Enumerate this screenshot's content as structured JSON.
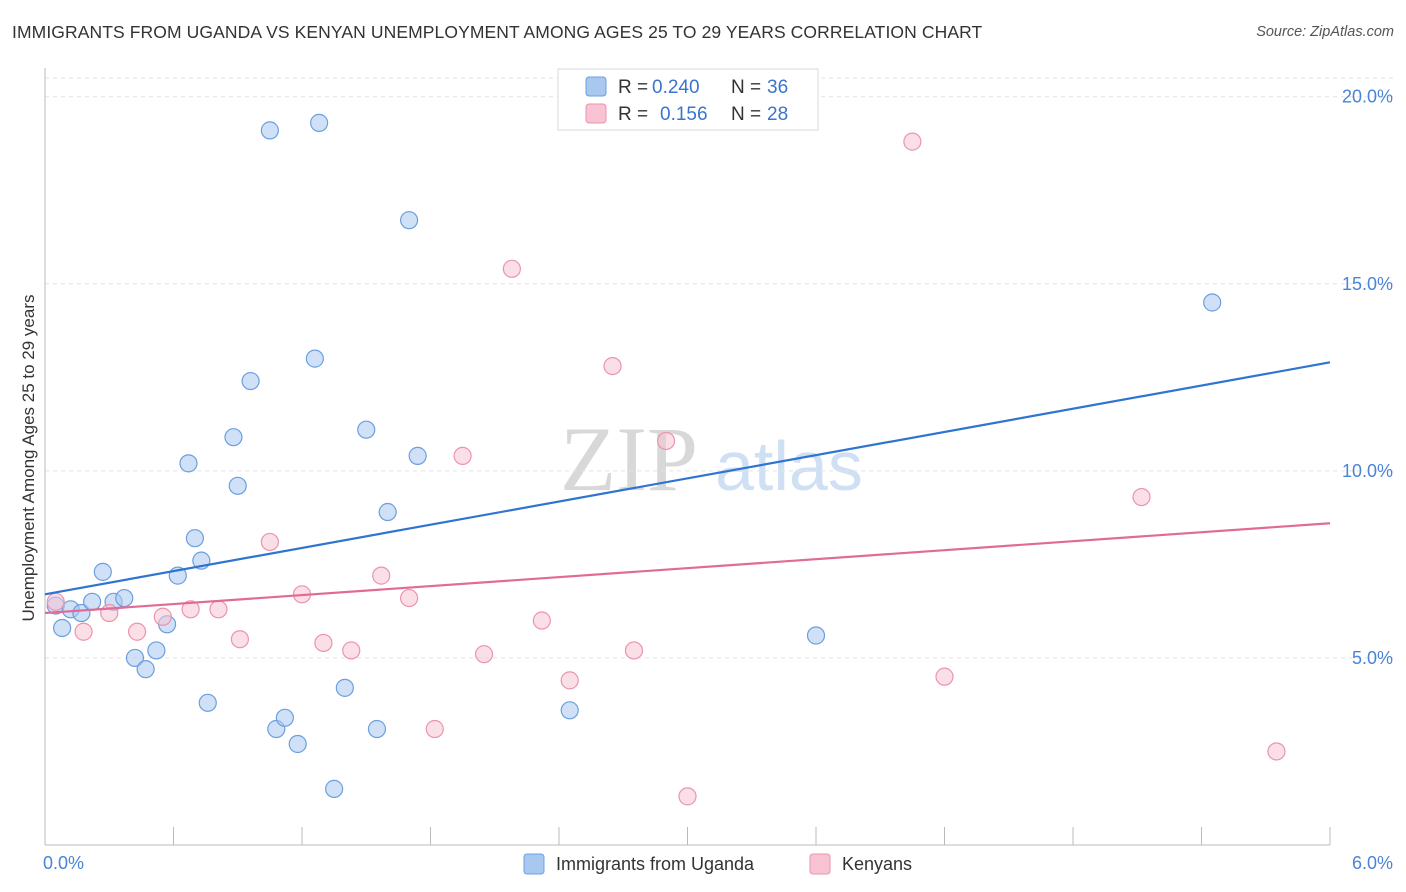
{
  "chart_data": {
    "type": "scatter",
    "title": "IMMIGRANTS FROM UGANDA VS KENYAN UNEMPLOYMENT AMONG AGES 25 TO 29 YEARS CORRELATION CHART",
    "source": "Source: ZipAtlas.com",
    "xlabel": "",
    "ylabel": "Unemployment Among Ages 25 to 29 years",
    "xlim": [
      0,
      6
    ],
    "ylim": [
      0,
      20.5
    ],
    "x_tick_labels": [
      "0.0%",
      "6.0%"
    ],
    "y_ticks": [
      5,
      10,
      15,
      20
    ],
    "y_tick_labels": [
      "5.0%",
      "10.0%",
      "15.0%",
      "20.0%"
    ],
    "watermark": {
      "zip": "ZIP",
      "atlas": "atlas"
    },
    "legend": {
      "rows": [
        {
          "r_label": "R =",
          "r_value": "0.240",
          "n_label": "N =",
          "n_value": "36"
        },
        {
          "r_label": "R =",
          "r_value": "0.156",
          "n_label": "N =",
          "n_value": "28"
        }
      ]
    },
    "series": [
      {
        "name": "Immigrants from Uganda",
        "color": "#a9c8f0",
        "stroke": "#6a9fe0",
        "line_color": "#2f74d0",
        "trend": [
          [
            0,
            6.7
          ],
          [
            6,
            12.9
          ]
        ],
        "points": [
          [
            0.05,
            6.4
          ],
          [
            0.08,
            5.8
          ],
          [
            0.12,
            6.3
          ],
          [
            0.17,
            6.2
          ],
          [
            0.22,
            6.5
          ],
          [
            0.27,
            7.3
          ],
          [
            0.32,
            6.5
          ],
          [
            0.37,
            6.6
          ],
          [
            0.42,
            5.0
          ],
          [
            0.47,
            4.7
          ],
          [
            0.52,
            5.2
          ],
          [
            0.57,
            5.9
          ],
          [
            0.62,
            7.2
          ],
          [
            0.67,
            10.2
          ],
          [
            0.7,
            8.2
          ],
          [
            0.73,
            7.6
          ],
          [
            0.76,
            3.8
          ],
          [
            0.88,
            10.9
          ],
          [
            0.9,
            9.6
          ],
          [
            0.96,
            12.4
          ],
          [
            1.05,
            19.1
          ],
          [
            1.08,
            3.1
          ],
          [
            1.12,
            3.4
          ],
          [
            1.18,
            2.7
          ],
          [
            1.26,
            13.0
          ],
          [
            1.28,
            19.3
          ],
          [
            1.35,
            1.5
          ],
          [
            1.4,
            4.2
          ],
          [
            1.5,
            11.1
          ],
          [
            1.55,
            3.1
          ],
          [
            1.6,
            8.9
          ],
          [
            1.7,
            16.7
          ],
          [
            1.74,
            10.4
          ],
          [
            2.45,
            3.6
          ],
          [
            3.6,
            5.6
          ],
          [
            5.45,
            14.5
          ]
        ]
      },
      {
        "name": "Kenyans",
        "color": "#f8c4d4",
        "stroke": "#ec93b0",
        "line_color": "#e06b95",
        "trend": [
          [
            0,
            6.2
          ],
          [
            6,
            8.6
          ]
        ],
        "points": [
          [
            0.05,
            6.5
          ],
          [
            0.18,
            5.7
          ],
          [
            0.3,
            6.2
          ],
          [
            0.43,
            5.7
          ],
          [
            0.55,
            6.1
          ],
          [
            0.68,
            6.3
          ],
          [
            0.81,
            6.3
          ],
          [
            0.91,
            5.5
          ],
          [
            1.05,
            8.1
          ],
          [
            1.2,
            6.7
          ],
          [
            1.3,
            5.4
          ],
          [
            1.43,
            5.2
          ],
          [
            1.57,
            7.2
          ],
          [
            1.7,
            6.6
          ],
          [
            1.82,
            3.1
          ],
          [
            1.95,
            10.4
          ],
          [
            2.05,
            5.1
          ],
          [
            2.18,
            15.4
          ],
          [
            2.32,
            6.0
          ],
          [
            2.45,
            4.4
          ],
          [
            2.65,
            12.8
          ],
          [
            2.75,
            5.2
          ],
          [
            2.9,
            10.8
          ],
          [
            3.0,
            1.3
          ],
          [
            4.05,
            18.8
          ],
          [
            4.2,
            4.5
          ],
          [
            5.12,
            9.3
          ],
          [
            5.75,
            2.5
          ]
        ]
      }
    ]
  }
}
